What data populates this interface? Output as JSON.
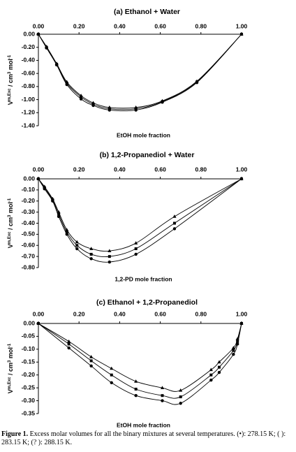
{
  "chart_data": [
    {
      "type": "line",
      "title": "(a) Ethanol + Water",
      "xlabel": "EtOH mole fraction",
      "ylabel": [
        "V",
        "m,Exc",
        " / cm",
        "3",
        " mol",
        "-1"
      ],
      "x": [
        0,
        0.04,
        0.09,
        0.14,
        0.21,
        0.27,
        0.35,
        0.48,
        0.61,
        0.78,
        1
      ],
      "series": [
        {
          "color": "#000000",
          "marker": "circle",
          "values": [
            0,
            -0.21,
            -0.47,
            -0.77,
            -0.99,
            -1.09,
            -1.16,
            -1.16,
            -1.04,
            -0.74,
            0
          ]
        },
        {
          "color": "#000000",
          "marker": "square",
          "values": [
            0,
            -0.2,
            -0.46,
            -0.75,
            -0.96,
            -1.07,
            -1.14,
            -1.14,
            -1.03,
            -0.73,
            0
          ]
        },
        {
          "color": "#000000",
          "marker": "triangle",
          "values": [
            0,
            -0.19,
            -0.45,
            -0.73,
            -0.94,
            -1.05,
            -1.12,
            -1.12,
            -1.02,
            -0.72,
            0
          ]
        }
      ],
      "xlim": [
        0,
        1
      ],
      "ylim": [
        -1.4,
        0
      ],
      "xticks": [
        {
          "value": 0,
          "label": "0.00"
        },
        {
          "value": 0.2,
          "label": "0.20"
        },
        {
          "value": 0.4,
          "label": "0.40"
        },
        {
          "value": 0.6,
          "label": "0.60"
        },
        {
          "value": 0.8,
          "label": "0.80"
        },
        {
          "value": 1,
          "label": "1.00"
        }
      ],
      "yticks": [
        {
          "value": 0,
          "label": "0.00"
        },
        {
          "value": -0.2,
          "label": "-0.20"
        },
        {
          "value": -0.4,
          "label": "-0.40"
        },
        {
          "value": -0.6,
          "label": "-0.60"
        },
        {
          "value": -0.8,
          "label": "-0.80"
        },
        {
          "value": -1,
          "label": "-1.00"
        },
        {
          "value": -1.2,
          "label": "-1.20"
        },
        {
          "value": -1.4,
          "label": "-1.40"
        }
      ]
    },
    {
      "type": "line",
      "title": "(b) 1,2-Propanediol + Water",
      "xlabel": "1,2-PD mole fraction",
      "ylabel": [
        "V",
        "m,Exc",
        " / cm",
        "3",
        " mol",
        "-1"
      ],
      "x": [
        0,
        0.03,
        0.07,
        0.1,
        0.14,
        0.19,
        0.26,
        0.35,
        0.48,
        0.67,
        1
      ],
      "series": [
        {
          "color": "#000000",
          "marker": "circle",
          "values": [
            0,
            -0.09,
            -0.2,
            -0.34,
            -0.5,
            -0.63,
            -0.72,
            -0.75,
            -0.68,
            -0.45,
            0
          ]
        },
        {
          "color": "#000000",
          "marker": "square",
          "values": [
            0,
            -0.08,
            -0.19,
            -0.32,
            -0.48,
            -0.6,
            -0.68,
            -0.7,
            -0.63,
            -0.4,
            0
          ]
        },
        {
          "color": "#000000",
          "marker": "triangle",
          "values": [
            0,
            -0.07,
            -0.18,
            -0.3,
            -0.46,
            -0.57,
            -0.63,
            -0.65,
            -0.58,
            -0.34,
            0
          ]
        }
      ],
      "xlim": [
        0,
        1
      ],
      "ylim": [
        -0.8,
        0
      ],
      "xticks": [
        {
          "value": 0,
          "label": "0.00"
        },
        {
          "value": 0.2,
          "label": "0.20"
        },
        {
          "value": 0.4,
          "label": "0.40"
        },
        {
          "value": 0.6,
          "label": "0.60"
        },
        {
          "value": 0.8,
          "label": "0.80"
        },
        {
          "value": 1,
          "label": "1.00"
        }
      ],
      "yticks": [
        {
          "value": 0,
          "label": "0.00"
        },
        {
          "value": -0.1,
          "label": "-0.10"
        },
        {
          "value": -0.2,
          "label": "-0.20"
        },
        {
          "value": -0.3,
          "label": "-0.30"
        },
        {
          "value": -0.4,
          "label": "-0.40"
        },
        {
          "value": -0.5,
          "label": "-0.50"
        },
        {
          "value": -0.6,
          "label": "-0.60"
        },
        {
          "value": -0.7,
          "label": "-0.70"
        },
        {
          "value": -0.8,
          "label": "-0.80"
        }
      ]
    },
    {
      "type": "line",
      "title": "(c) Ethanol + 1,2-Propanediol",
      "xlabel": "EtOH mole fraction",
      "ylabel": [
        "V",
        "m,Exc",
        " / cm",
        "3",
        " mol",
        "-1"
      ],
      "x": [
        0,
        0.15,
        0.26,
        0.36,
        0.48,
        0.61,
        0.7,
        0.85,
        0.89,
        0.96,
        0.98,
        1
      ],
      "series": [
        {
          "color": "#000000",
          "marker": "circle",
          "values": [
            0,
            -0.095,
            -0.165,
            -0.23,
            -0.28,
            -0.3,
            -0.31,
            -0.22,
            -0.19,
            -0.12,
            -0.08,
            0
          ]
        },
        {
          "color": "#000000",
          "marker": "square",
          "values": [
            0,
            -0.08,
            -0.145,
            -0.2,
            -0.255,
            -0.28,
            -0.285,
            -0.2,
            -0.17,
            -0.105,
            -0.07,
            0
          ]
        },
        {
          "color": "#000000",
          "marker": "triangle",
          "values": [
            0,
            -0.07,
            -0.13,
            -0.175,
            -0.225,
            -0.25,
            -0.26,
            -0.18,
            -0.15,
            -0.095,
            -0.06,
            0
          ]
        }
      ],
      "xlim": [
        0,
        1
      ],
      "ylim": [
        -0.35,
        0
      ],
      "xticks": [
        {
          "value": 0,
          "label": "0.00"
        },
        {
          "value": 0.2,
          "label": "0.20"
        },
        {
          "value": 0.4,
          "label": "0.40"
        },
        {
          "value": 0.6,
          "label": "0.60"
        },
        {
          "value": 0.8,
          "label": "0.80"
        },
        {
          "value": 1,
          "label": "1.00"
        }
      ],
      "yticks": [
        {
          "value": 0,
          "label": "0.00"
        },
        {
          "value": -0.05,
          "label": "-0.05"
        },
        {
          "value": -0.1,
          "label": "-0.10"
        },
        {
          "value": -0.15,
          "label": "-0.15"
        },
        {
          "value": -0.2,
          "label": "-0.20"
        },
        {
          "value": -0.25,
          "label": "-0.25"
        },
        {
          "value": -0.3,
          "label": "-0.30"
        },
        {
          "value": -0.35,
          "label": "-0.35"
        }
      ]
    }
  ],
  "caption": {
    "label": "Figure 1.",
    "text": "Excess molar volumes for all the binary mixtures at several temperatures. (•): 278.15 K; ( ): 283.15 K; (? ): 288.15 K."
  }
}
